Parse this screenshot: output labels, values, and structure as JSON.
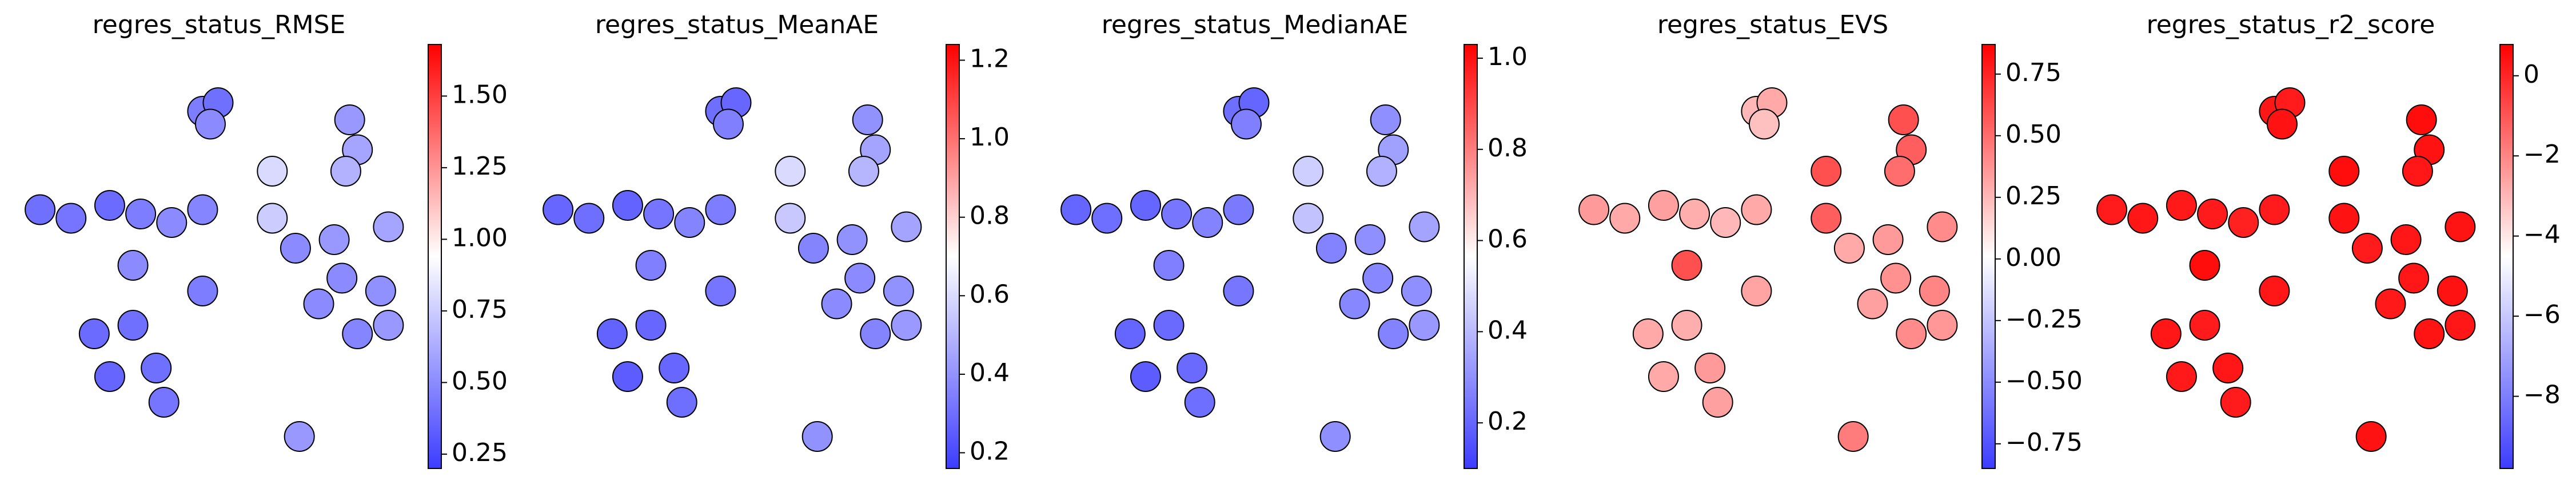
{
  "chart_data": [
    {
      "type": "scatter",
      "title": "regres_status_RMSE",
      "colormap": "bwr",
      "x": [
        4.6,
        5.0,
        4.8,
        8.4,
        8.6,
        8.3,
        0.4,
        1.2,
        2.2,
        3.0,
        3.8,
        4.6,
        6.4,
        6.4,
        7.0,
        8.0,
        9.4,
        8.2,
        9.2,
        8.6,
        9.4,
        7.6,
        1.8,
        2.8,
        4.6,
        2.2,
        3.4,
        3.6,
        7.1,
        2.8
      ],
      "y": [
        8.2,
        8.4,
        7.9,
        8.0,
        7.3,
        6.8,
        5.9,
        5.7,
        6.0,
        5.8,
        5.6,
        5.9,
        6.8,
        5.7,
        5.0,
        5.2,
        5.5,
        4.3,
        4.0,
        3.0,
        3.2,
        3.7,
        3.0,
        3.2,
        4.0,
        2.0,
        2.2,
        1.4,
        0.6,
        4.6
      ],
      "values": [
        0.45,
        0.4,
        0.5,
        0.55,
        0.6,
        0.65,
        0.4,
        0.42,
        0.38,
        0.45,
        0.5,
        0.48,
        0.8,
        0.75,
        0.5,
        0.55,
        0.6,
        0.5,
        0.52,
        0.48,
        0.55,
        0.5,
        0.38,
        0.4,
        0.45,
        0.36,
        0.4,
        0.42,
        0.55,
        0.5
      ],
      "xlim": [
        0,
        10
      ],
      "ylim": [
        0,
        10
      ],
      "clim": [
        0.2,
        1.68
      ],
      "cticks": [
        0.25,
        {
          "value": 0.5,
          "label": "0.50"
        },
        0.75,
        {
          "value": 1.0,
          "label": "1.00"
        },
        1.25,
        {
          "value": 1.5,
          "label": "1.50"
        }
      ]
    },
    {
      "type": "scatter",
      "title": "regres_status_MeanAE",
      "colormap": "bwr",
      "x": [
        4.6,
        5.0,
        4.8,
        8.4,
        8.6,
        8.3,
        0.4,
        1.2,
        2.2,
        3.0,
        3.8,
        4.6,
        6.4,
        6.4,
        7.0,
        8.0,
        9.4,
        8.2,
        9.2,
        8.6,
        9.4,
        7.6,
        1.8,
        2.8,
        4.6,
        2.2,
        3.4,
        3.6,
        7.1,
        2.8
      ],
      "y": [
        8.2,
        8.4,
        7.9,
        8.0,
        7.3,
        6.8,
        5.9,
        5.7,
        6.0,
        5.8,
        5.6,
        5.9,
        6.8,
        5.7,
        5.0,
        5.2,
        5.5,
        4.3,
        4.0,
        3.0,
        3.2,
        3.7,
        3.0,
        3.2,
        4.0,
        2.0,
        2.2,
        1.4,
        0.6,
        4.6
      ],
      "values": [
        0.3,
        0.28,
        0.35,
        0.4,
        0.45,
        0.5,
        0.28,
        0.3,
        0.27,
        0.32,
        0.36,
        0.34,
        0.6,
        0.55,
        0.36,
        0.4,
        0.45,
        0.38,
        0.4,
        0.36,
        0.42,
        0.38,
        0.27,
        0.28,
        0.32,
        0.25,
        0.28,
        0.3,
        0.4,
        0.35
      ],
      "xlim": [
        0,
        10
      ],
      "ylim": [
        0,
        10
      ],
      "clim": [
        0.16,
        1.24
      ],
      "cticks": [
        0.2,
        0.4,
        0.6,
        0.8,
        {
          "value": 1.0,
          "label": "1.0"
        },
        1.2
      ]
    },
    {
      "type": "scatter",
      "title": "regres_status_MedianAE",
      "colormap": "bwr",
      "x": [
        4.6,
        5.0,
        4.8,
        8.4,
        8.6,
        8.3,
        0.4,
        1.2,
        2.2,
        3.0,
        3.8,
        4.6,
        6.4,
        6.4,
        7.0,
        8.0,
        9.4,
        8.2,
        9.2,
        8.6,
        9.4,
        7.6,
        1.8,
        2.8,
        4.6,
        2.2,
        3.4,
        3.6,
        7.1,
        2.8
      ],
      "y": [
        8.2,
        8.4,
        7.9,
        8.0,
        7.3,
        6.8,
        5.9,
        5.7,
        6.0,
        5.8,
        5.6,
        5.9,
        6.8,
        5.7,
        5.0,
        5.2,
        5.5,
        4.3,
        4.0,
        3.0,
        3.2,
        3.7,
        3.0,
        3.2,
        4.0,
        2.0,
        2.2,
        1.4,
        0.6,
        4.6
      ],
      "values": [
        0.22,
        0.2,
        0.26,
        0.3,
        0.34,
        0.38,
        0.2,
        0.22,
        0.2,
        0.24,
        0.27,
        0.25,
        0.45,
        0.42,
        0.27,
        0.3,
        0.35,
        0.28,
        0.3,
        0.27,
        0.32,
        0.28,
        0.2,
        0.21,
        0.24,
        0.18,
        0.21,
        0.22,
        0.3,
        0.26
      ],
      "xlim": [
        0,
        10
      ],
      "ylim": [
        0,
        10
      ],
      "clim": [
        0.1,
        1.03
      ],
      "cticks": [
        0.2,
        0.4,
        0.6,
        0.8,
        {
          "value": 1.0,
          "label": "1.0"
        }
      ]
    },
    {
      "type": "scatter",
      "title": "regres_status_EVS",
      "colormap": "bwr",
      "x": [
        4.6,
        5.0,
        4.8,
        8.4,
        8.6,
        8.3,
        0.4,
        1.2,
        2.2,
        3.0,
        3.8,
        4.6,
        6.4,
        6.4,
        7.0,
        8.0,
        9.4,
        8.2,
        9.2,
        8.6,
        9.4,
        7.6,
        1.8,
        2.8,
        4.6,
        2.2,
        3.4,
        3.6,
        7.1,
        2.8
      ],
      "y": [
        8.2,
        8.4,
        7.9,
        8.0,
        7.3,
        6.8,
        5.9,
        5.7,
        6.0,
        5.8,
        5.6,
        5.9,
        6.8,
        5.7,
        5.0,
        5.2,
        5.5,
        4.3,
        4.0,
        3.0,
        3.2,
        3.7,
        3.0,
        3.2,
        4.0,
        2.0,
        2.2,
        1.4,
        0.6,
        4.6
      ],
      "values": [
        0.25,
        0.3,
        0.22,
        0.6,
        0.55,
        0.5,
        0.35,
        0.3,
        0.33,
        0.28,
        0.25,
        0.3,
        0.6,
        0.55,
        0.3,
        0.35,
        0.4,
        0.38,
        0.42,
        0.4,
        0.36,
        0.33,
        0.3,
        0.28,
        0.32,
        0.3,
        0.35,
        0.33,
        0.45,
        0.6
      ],
      "xlim": [
        0,
        10
      ],
      "ylim": [
        0,
        10
      ],
      "clim": [
        -0.85,
        0.87
      ],
      "cticks": [
        {
          "value": -0.75,
          "label": "−0.75"
        },
        {
          "value": -0.5,
          "label": "−0.50"
        },
        {
          "value": -0.25,
          "label": "−0.25"
        },
        {
          "value": 0,
          "label": "0.00"
        },
        0.25,
        {
          "value": 0.5,
          "label": "0.50"
        },
        0.75
      ]
    },
    {
      "type": "scatter",
      "title": "regres_status_r2_score",
      "colormap": "bwr",
      "x": [
        4.6,
        5.0,
        4.8,
        8.4,
        8.6,
        8.3,
        0.4,
        1.2,
        2.2,
        3.0,
        3.8,
        4.6,
        6.4,
        6.4,
        7.0,
        8.0,
        9.4,
        8.2,
        9.2,
        8.6,
        9.4,
        7.6,
        1.8,
        2.8,
        4.6,
        2.2,
        3.4,
        3.6,
        7.1,
        2.8
      ],
      "y": [
        8.2,
        8.4,
        7.9,
        8.0,
        7.3,
        6.8,
        5.9,
        5.7,
        6.0,
        5.8,
        5.6,
        5.9,
        6.8,
        5.7,
        5.0,
        5.2,
        5.5,
        4.3,
        4.0,
        3.0,
        3.2,
        3.7,
        3.0,
        3.2,
        4.0,
        2.0,
        2.2,
        1.4,
        0.6,
        4.6
      ],
      "values": [
        0.3,
        0.2,
        0.4,
        0.5,
        0.4,
        0.3,
        0.2,
        0.3,
        0.25,
        0.2,
        0.1,
        0.2,
        0.5,
        0.4,
        0.2,
        0.3,
        0.35,
        0.3,
        0.4,
        0.35,
        0.3,
        0.25,
        0.3,
        0.2,
        0.3,
        0.25,
        0.3,
        0.2,
        0.4,
        0.5
      ],
      "xlim": [
        0,
        10
      ],
      "ylim": [
        0,
        10
      ],
      "clim": [
        -9.8,
        0.78
      ],
      "cticks": [
        {
          "value": -8,
          "label": "−8"
        },
        {
          "value": -6,
          "label": "−6"
        },
        {
          "value": -4,
          "label": "−4"
        },
        {
          "value": -2,
          "label": "−2"
        },
        0
      ]
    }
  ]
}
